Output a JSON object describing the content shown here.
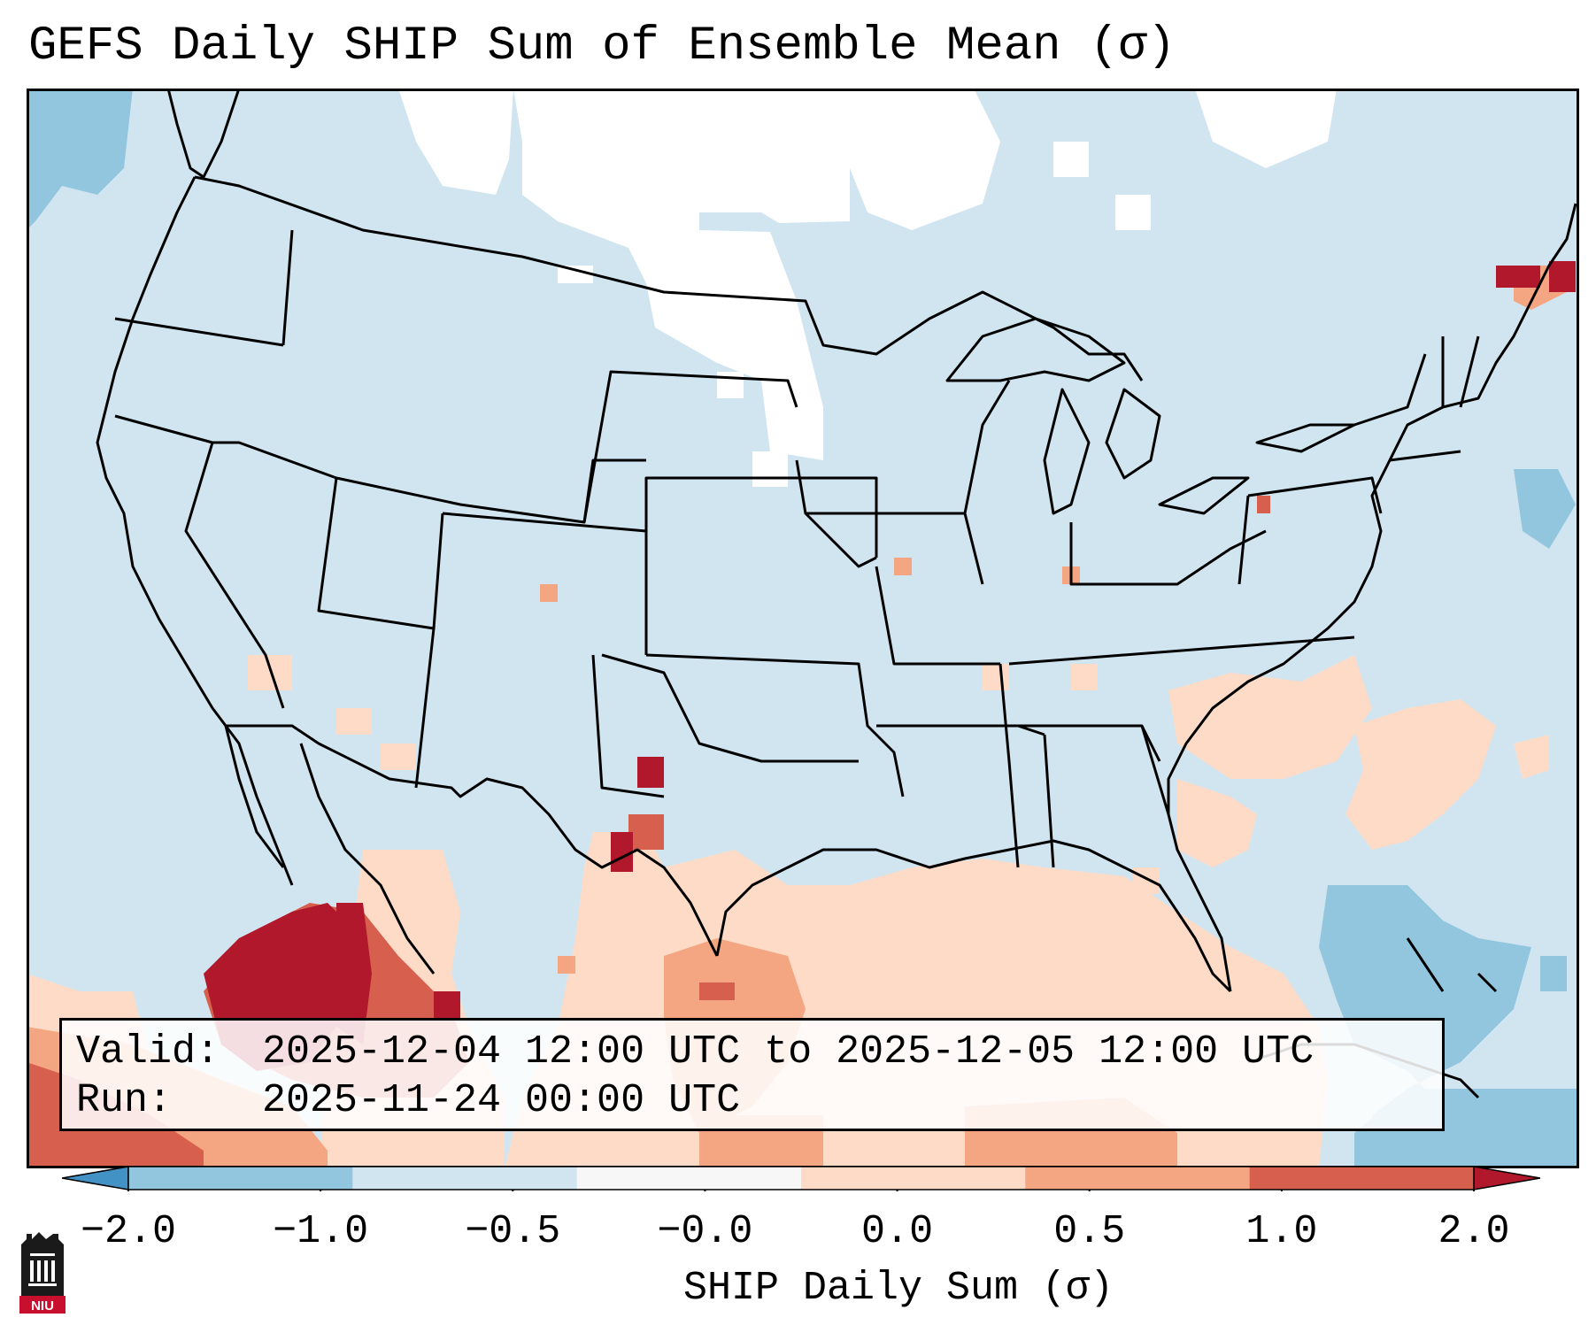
{
  "title": "GEFS Daily SHIP Sum of Ensemble Mean (σ)",
  "info": {
    "valid_label": "Valid:",
    "valid_value": "2025-12-04 12:00 UTC to 2025-12-05 12:00 UTC",
    "run_label": "Run:",
    "run_value": "2025-11-24 00:00 UTC"
  },
  "colorbar": {
    "label": "SHIP Daily Sum (σ)",
    "ticks": [
      "−2.0",
      "−1.0",
      "−0.5",
      "−0.0",
      "0.0",
      "0.5",
      "1.0",
      "2.0"
    ],
    "colors": [
      "#4292c6",
      "#92c5de",
      "#d1e5f0",
      "#f7f7f7",
      "#fddbc7",
      "#f4a582",
      "#d6604d",
      "#b2182b"
    ]
  },
  "map": {
    "domain": "CONUS",
    "background_color": "#d1e5f0",
    "boundary_color": "#000000"
  },
  "logo": {
    "text": "NIU",
    "icon": "university-building-icon"
  }
}
